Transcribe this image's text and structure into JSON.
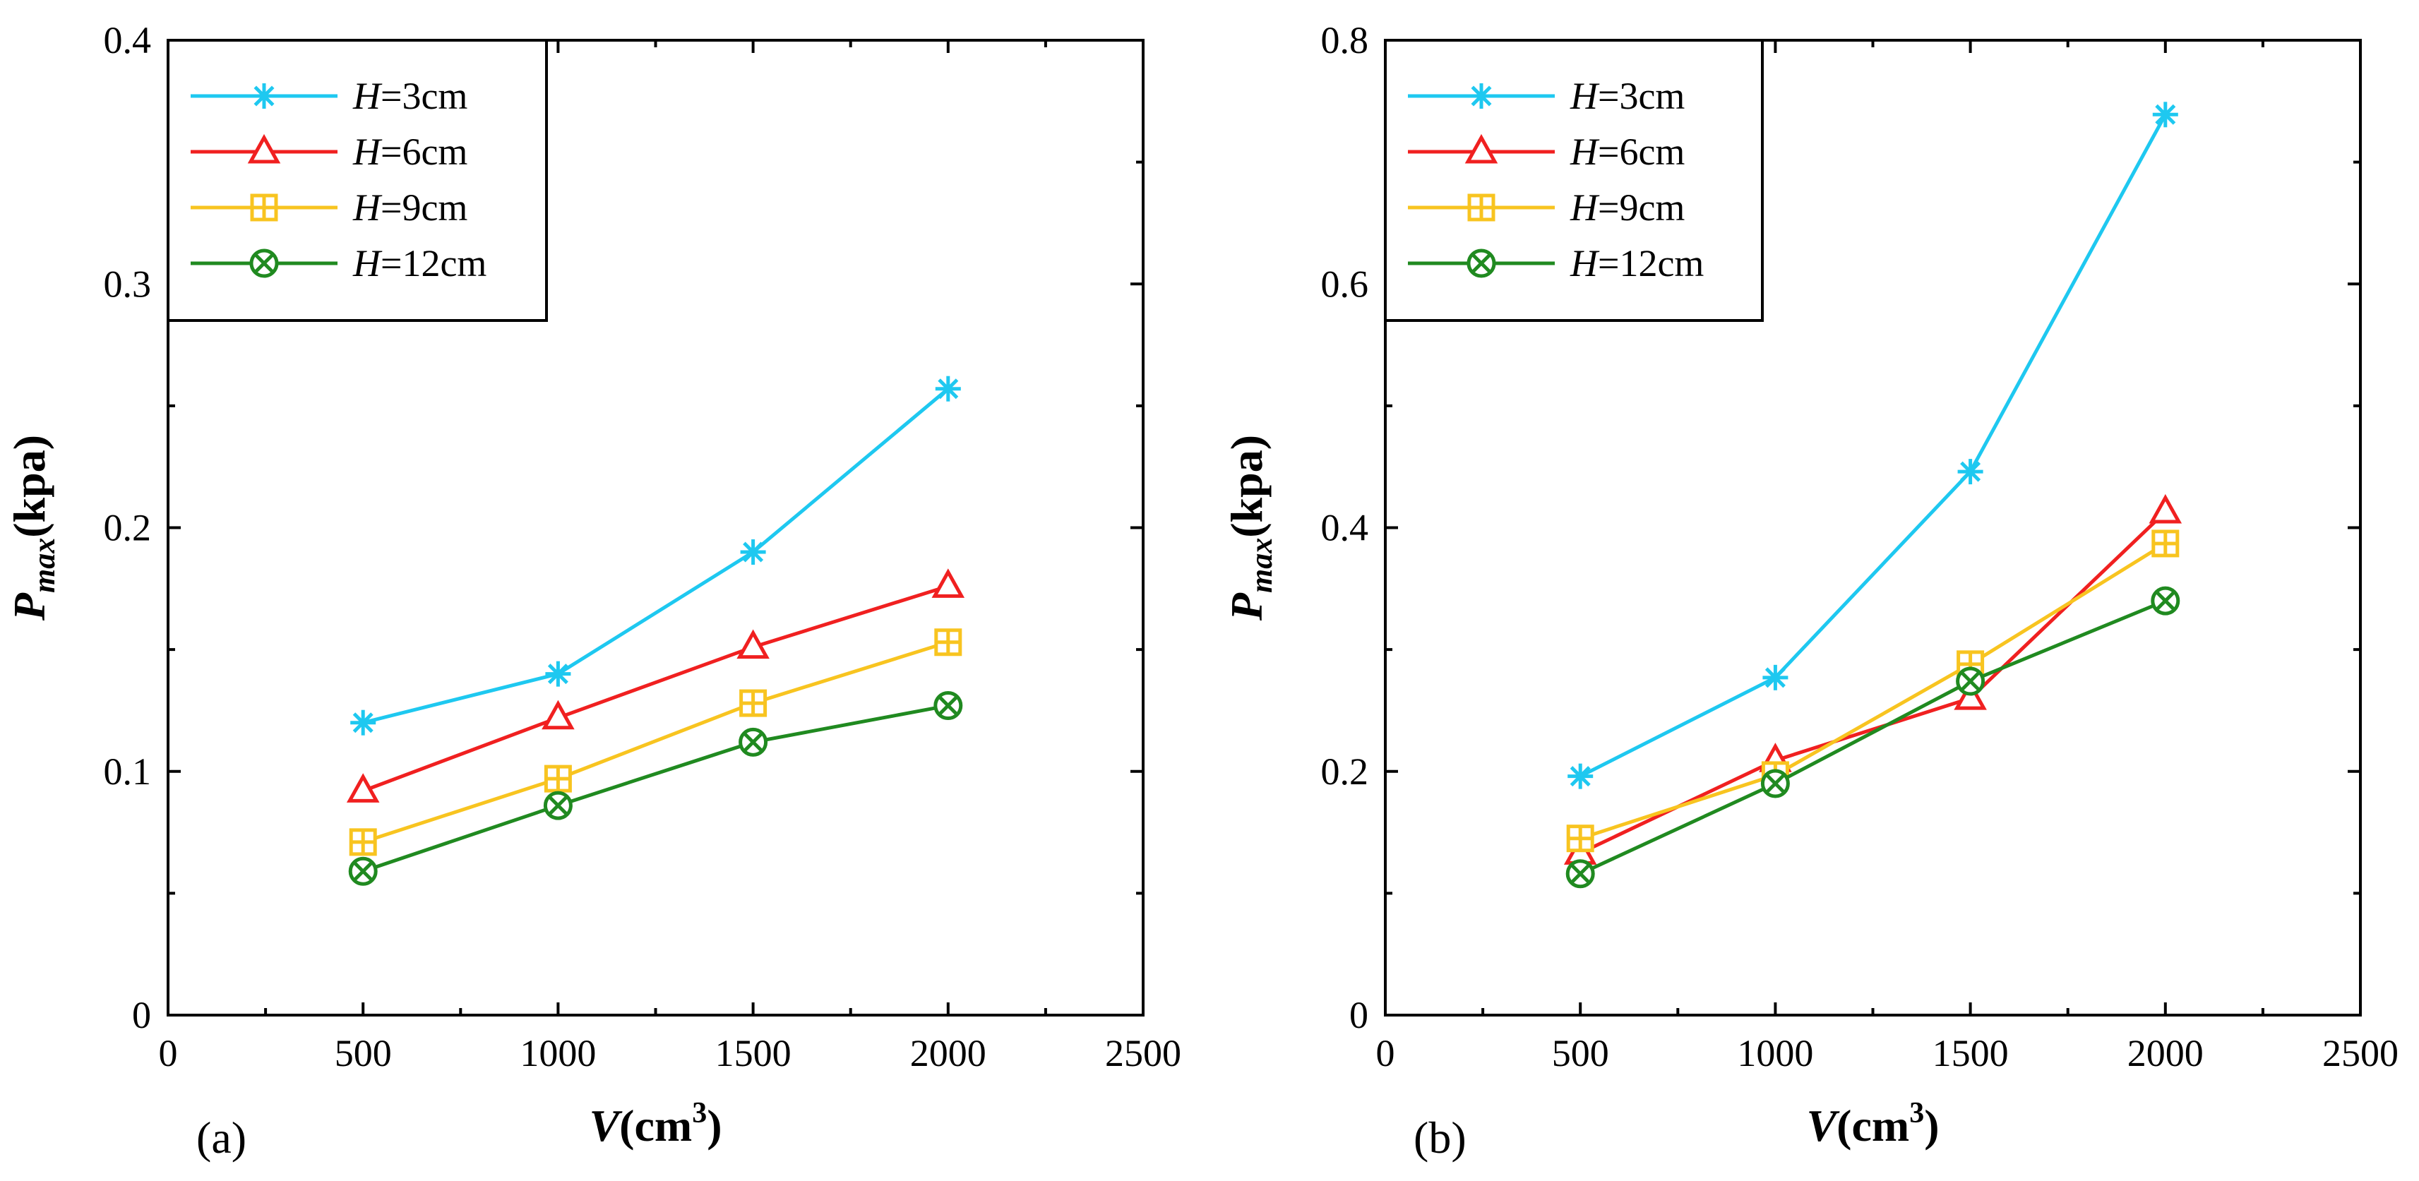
{
  "colors": {
    "H3": "#1ec8f0",
    "H6": "#f02020",
    "H9": "#f8c420",
    "H12": "#208a20"
  },
  "chart_data": [
    {
      "type": "line",
      "panel_label": "(a)",
      "xlabel": {
        "var": "V",
        "unit_prefix": "(cm",
        "unit_sup": "3",
        "unit_suffix": ")"
      },
      "ylabel": {
        "var": "P",
        "sub": "max",
        "unit": "(kpa)"
      },
      "xlim": [
        0,
        2500
      ],
      "ylim": [
        0,
        0.4
      ],
      "xticks": [
        0,
        500,
        1000,
        1500,
        2000,
        2500
      ],
      "xtick_labels": [
        "0",
        "500",
        "1000",
        "1500",
        "2000",
        "2500"
      ],
      "yticks": [
        0,
        0.1,
        0.2,
        0.3,
        0.4
      ],
      "ytick_labels": [
        "0",
        "0.1",
        "0.2",
        "0.3",
        "0.4"
      ],
      "legend_position": "top-left",
      "x": [
        500,
        1000,
        1500,
        2000
      ],
      "series": [
        {
          "name": "H=3cm",
          "var": "H",
          "label": "=3cm",
          "marker": "star",
          "colorKey": "H3",
          "values": [
            0.12,
            0.14,
            0.19,
            0.257
          ]
        },
        {
          "name": "H=6cm",
          "var": "H",
          "label": "=6cm",
          "marker": "triangle",
          "colorKey": "H6",
          "values": [
            0.092,
            0.122,
            0.151,
            0.176
          ]
        },
        {
          "name": "H=9cm",
          "var": "H",
          "label": "=9cm",
          "marker": "square-plus",
          "colorKey": "H9",
          "values": [
            0.071,
            0.097,
            0.128,
            0.153
          ]
        },
        {
          "name": "H=12cm",
          "var": "H",
          "label": "=12cm",
          "marker": "circle-x",
          "colorKey": "H12",
          "values": [
            0.059,
            0.086,
            0.112,
            0.127
          ]
        }
      ]
    },
    {
      "type": "line",
      "panel_label": "(b)",
      "xlabel": {
        "var": "V",
        "unit_prefix": "(cm",
        "unit_sup": "3",
        "unit_suffix": ")"
      },
      "ylabel": {
        "var": "P",
        "sub": "max",
        "unit": "(kpa)"
      },
      "xlim": [
        0,
        2500
      ],
      "ylim": [
        0,
        0.8
      ],
      "xticks": [
        0,
        500,
        1000,
        1500,
        2000,
        2500
      ],
      "xtick_labels": [
        "0",
        "500",
        "1000",
        "1500",
        "2000",
        "2500"
      ],
      "yticks": [
        0,
        0.2,
        0.4,
        0.6,
        0.8
      ],
      "ytick_labels": [
        "0",
        "0.2",
        "0.4",
        "0.6",
        "0.8"
      ],
      "legend_position": "top-left",
      "x": [
        500,
        1000,
        1500,
        2000
      ],
      "series": [
        {
          "name": "H=3cm",
          "var": "H",
          "label": "=3cm",
          "marker": "star",
          "colorKey": "H3",
          "values": [
            0.196,
            0.277,
            0.446,
            0.739
          ]
        },
        {
          "name": "H=6cm",
          "var": "H",
          "label": "=6cm",
          "marker": "triangle",
          "colorKey": "H6",
          "values": [
            0.133,
            0.209,
            0.26,
            0.413
          ]
        },
        {
          "name": "H=9cm",
          "var": "H",
          "label": "=9cm",
          "marker": "square-plus",
          "colorKey": "H9",
          "values": [
            0.145,
            0.197,
            0.288,
            0.387
          ]
        },
        {
          "name": "H=12cm",
          "var": "H",
          "label": "=12cm",
          "marker": "circle-x",
          "colorKey": "H12",
          "values": [
            0.116,
            0.19,
            0.274,
            0.34
          ]
        }
      ]
    }
  ]
}
